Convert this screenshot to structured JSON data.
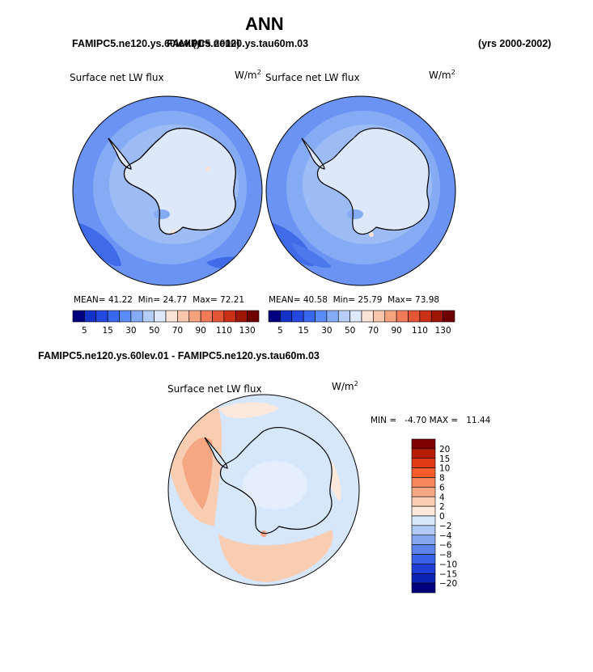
{
  "figure": {
    "title": "ANN",
    "left_case": "FAMIPC5.ne120.ys.60lev.01",
    "right_case": "FAMIPC5.ne120.ys.tau60m.03",
    "left_header_overlap": "(yrs 2000)",
    "years": "(yrs 2000-2002)",
    "diff_title": "FAMIPC5.ne120.ys.60lev.01 - FAMIPC5.ne120.ys.tau60m.03"
  },
  "panels": {
    "left": {
      "label": "Surface net LW flux",
      "units_base": "W/m",
      "units_exp": "2",
      "mean_label": "MEAN=",
      "mean": "41.22",
      "min_label": "Min=",
      "min": "24.77",
      "max_label": "Max=",
      "max": "72.21"
    },
    "right": {
      "label": "Surface net LW flux",
      "units_base": "W/m",
      "units_exp": "2",
      "mean_label": "MEAN=",
      "mean": "40.58",
      "min_label": "Min=",
      "min": "25.79",
      "max_label": "Max=",
      "max": "73.98"
    },
    "diff": {
      "label": "Surface net LW flux",
      "units_base": "W/m",
      "units_exp": "2",
      "stats_text": "MIN =   -4.70 MAX =   11.44"
    }
  },
  "chart_data": [
    {
      "type": "heatmap",
      "title": "Surface net LW flux (FAMIPC5.ne120.ys.60lev.01)",
      "projection": "south polar stereographic",
      "units": "W/m2",
      "stats": {
        "mean": 41.22,
        "min": 24.77,
        "max": 72.21
      },
      "colorbar_levels": [
        5,
        10,
        15,
        20,
        30,
        40,
        50,
        60,
        70,
        80,
        90,
        100,
        110,
        120,
        130
      ],
      "colorbar_tick_labels": [
        "5",
        "15",
        "30",
        "50",
        "70",
        "90",
        "110",
        "130"
      ],
      "colors": [
        "#00007f",
        "#1532c8",
        "#2448e0",
        "#3768ee",
        "#5a8cf5",
        "#86abf5",
        "#b6cdf7",
        "#dde8fb",
        "#fbe3d6",
        "#f8c6ac",
        "#f5a27f",
        "#f07b58",
        "#e25535",
        "#c83018",
        "#9e1606",
        "#6e0000"
      ]
    },
    {
      "type": "heatmap",
      "title": "Surface net LW flux (FAMIPC5.ne120.ys.tau60m.03)",
      "projection": "south polar stereographic",
      "units": "W/m2",
      "stats": {
        "mean": 40.58,
        "min": 25.79,
        "max": 73.98
      },
      "colorbar_levels": [
        5,
        10,
        15,
        20,
        30,
        40,
        50,
        60,
        70,
        80,
        90,
        100,
        110,
        120,
        130
      ],
      "colorbar_tick_labels": [
        "5",
        "15",
        "30",
        "50",
        "70",
        "90",
        "110",
        "130"
      ],
      "colors": [
        "#00007f",
        "#1532c8",
        "#2448e0",
        "#3768ee",
        "#5a8cf5",
        "#86abf5",
        "#b6cdf7",
        "#dde8fb",
        "#fbe3d6",
        "#f8c6ac",
        "#f5a27f",
        "#f07b58",
        "#e25535",
        "#c83018",
        "#9e1606",
        "#6e0000"
      ]
    },
    {
      "type": "heatmap",
      "title": "Surface net LW flux difference",
      "projection": "south polar stereographic",
      "units": "W/m2",
      "stats": {
        "min": -4.7,
        "max": 11.44
      },
      "colorbar_levels": [
        "20",
        "15",
        "10",
        "8",
        "6",
        "4",
        "2",
        "0",
        "−2",
        "−4",
        "−6",
        "−8",
        "−10",
        "−15",
        "−20"
      ],
      "colors": [
        "#7f0000",
        "#b51e05",
        "#e03b12",
        "#f55e2c",
        "#f7875a",
        "#f5a783",
        "#f8cdb2",
        "#fde9dc",
        "#d6e6fb",
        "#b0c9f5",
        "#86a8ef",
        "#5c84ec",
        "#3a62e6",
        "#1e3fd6",
        "#0b23b4",
        "#00007f"
      ]
    }
  ]
}
